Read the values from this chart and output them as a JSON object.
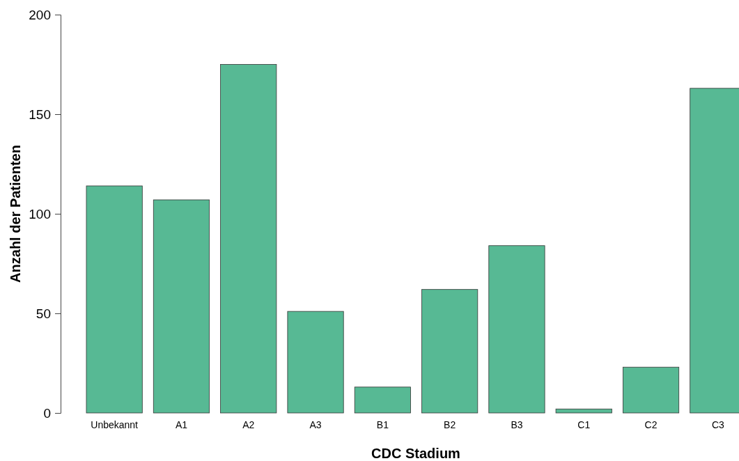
{
  "chart_data": {
    "type": "bar",
    "xlabel": "CDC Stadium",
    "ylabel": "Anzahl der Patienten",
    "categories": [
      "Unbekannt",
      "A1",
      "A2",
      "A3",
      "B1",
      "B2",
      "B3",
      "C1",
      "C2",
      "C3"
    ],
    "values": [
      114,
      107,
      175,
      51,
      13,
      62,
      84,
      2,
      23,
      163
    ],
    "color": "#57b994",
    "ylim": [
      0,
      200
    ],
    "yticks": [
      0,
      50,
      100,
      150,
      200
    ],
    "grid": false
  }
}
